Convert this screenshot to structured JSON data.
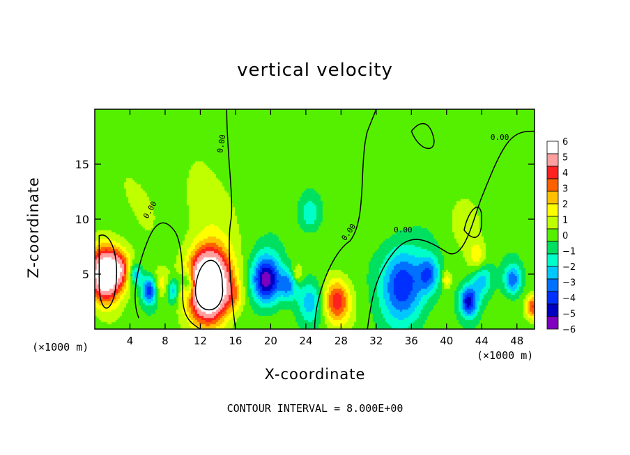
{
  "chart_data": {
    "type": "heatmap",
    "title": "vertical velocity",
    "xlabel": "X-coordinate",
    "ylabel": "Z-coordinate",
    "x_unit_label": "(×1000 m)",
    "z_unit_label": "(×1000 m)",
    "contour_interval_label": "CONTOUR INTERVAL = 8.000E+00",
    "contour_line_label": "0.00",
    "xlim": [
      0,
      50
    ],
    "ylim": [
      0,
      20
    ],
    "x_ticks": [
      4,
      8,
      12,
      16,
      20,
      24,
      28,
      32,
      36,
      40,
      44,
      48
    ],
    "y_ticks": [
      5,
      10,
      15
    ],
    "colorbar": {
      "ticks": [
        6,
        5,
        4,
        3,
        2,
        1,
        0,
        -1,
        -2,
        -3,
        -4,
        -5,
        -6
      ],
      "colors_top_to_bottom": [
        "#ffffff",
        "#ffa0a0",
        "#ff2020",
        "#ff6000",
        "#ffc000",
        "#ffff00",
        "#c0ff00",
        "#55f000",
        "#00e060",
        "#00ffc8",
        "#00c8ff",
        "#0070ff",
        "#0030ff",
        "#0000c0",
        "#8000c0"
      ]
    },
    "features": [
      {
        "x": 1.2,
        "z": 5,
        "w": 1.8,
        "peak": 9
      },
      {
        "x": 3,
        "z": 5.5,
        "w": 1.2,
        "peak": 3
      },
      {
        "x": 4.6,
        "z": 5,
        "w": 0.7,
        "peak": -3
      },
      {
        "x": 6.2,
        "z": 3.5,
        "w": 0.9,
        "peak": -4.5
      },
      {
        "x": 7.6,
        "z": 4,
        "w": 1,
        "peak": 2
      },
      {
        "x": 8.9,
        "z": 3.5,
        "w": 0.8,
        "peak": -3
      },
      {
        "x": 10,
        "z": 3.5,
        "w": 0.6,
        "peak": 2
      },
      {
        "x": 10.6,
        "z": 4,
        "w": 0.9,
        "peak": -4
      },
      {
        "x": 13,
        "z": 4,
        "w": 2.3,
        "peak": 12
      },
      {
        "x": 16,
        "z": 3,
        "w": 1,
        "peak": 1.5
      },
      {
        "x": 19.5,
        "z": 4.5,
        "w": 1.6,
        "peak": -6
      },
      {
        "x": 22,
        "z": 4,
        "w": 1,
        "peak": -3
      },
      {
        "x": 23,
        "z": 5,
        "w": 0.6,
        "peak": 2
      },
      {
        "x": 24.5,
        "z": 2.5,
        "w": 1.4,
        "peak": -2.5
      },
      {
        "x": 27.5,
        "z": 2.5,
        "w": 1.5,
        "peak": 4.5
      },
      {
        "x": 24.5,
        "z": 10.5,
        "w": 1.2,
        "peak": -2
      },
      {
        "x": 35,
        "z": 4,
        "w": 2.5,
        "peak": -4.5
      },
      {
        "x": 38,
        "z": 5,
        "w": 1.2,
        "peak": -3
      },
      {
        "x": 40,
        "z": 4.5,
        "w": 0.6,
        "peak": 2
      },
      {
        "x": 42.5,
        "z": 2.5,
        "w": 1,
        "peak": -5
      },
      {
        "x": 43.5,
        "z": 6.5,
        "w": 1,
        "peak": 2
      },
      {
        "x": 44,
        "z": 4.5,
        "w": 1.2,
        "peak": -2.5
      },
      {
        "x": 47.5,
        "z": 4.5,
        "w": 1,
        "peak": -3.5
      },
      {
        "x": 49.8,
        "z": 2,
        "w": 0.8,
        "peak": 4
      },
      {
        "x": 42,
        "z": 10,
        "w": 2,
        "peak": 0.8
      },
      {
        "x": 5,
        "z": 12,
        "w": 3,
        "peak": 0.6
      },
      {
        "x": 13,
        "z": 11,
        "w": 3,
        "peak": 1
      }
    ],
    "contour_paths": [
      "M 0.5 8.5 C 2 9 3 6 2.2 3 C 1.5 1 0.5 2 0.5 4 Z",
      "M 11.5 4 C 11 1 15 1 14.5 4 C 14.5 7 12 7 11.5 4 Z",
      "M 5 1 C 4 3 5 6 6 8 C 7 10 8 10 9 9 C 10 8 10 5 10 3 C 10 1 11 0.5 12 0",
      "M 16 0 C 15.5 3 15 8 15.5 10 C 15.8 12 15 16 15 20",
      "M 25 0 C 25 3 27 7 29 8 C 31 10 30 15 31 18 C 31.5 19 32 20 32 20",
      "M 31 0 C 31.5 3 32 5 34 7 C 36 9 38 8 40 7 C 42 6 43 10 44 12 C 45 14 46 16 47 17 C 48 18 49 18 50 18",
      "M 36 18 C 37 19 38 19 38.5 17.5 C 39 16 37 16 36 18 Z",
      "M 42 9 C 42.5 11 44 12 44 10 C 44 8 43 8 42 9 Z"
    ]
  }
}
